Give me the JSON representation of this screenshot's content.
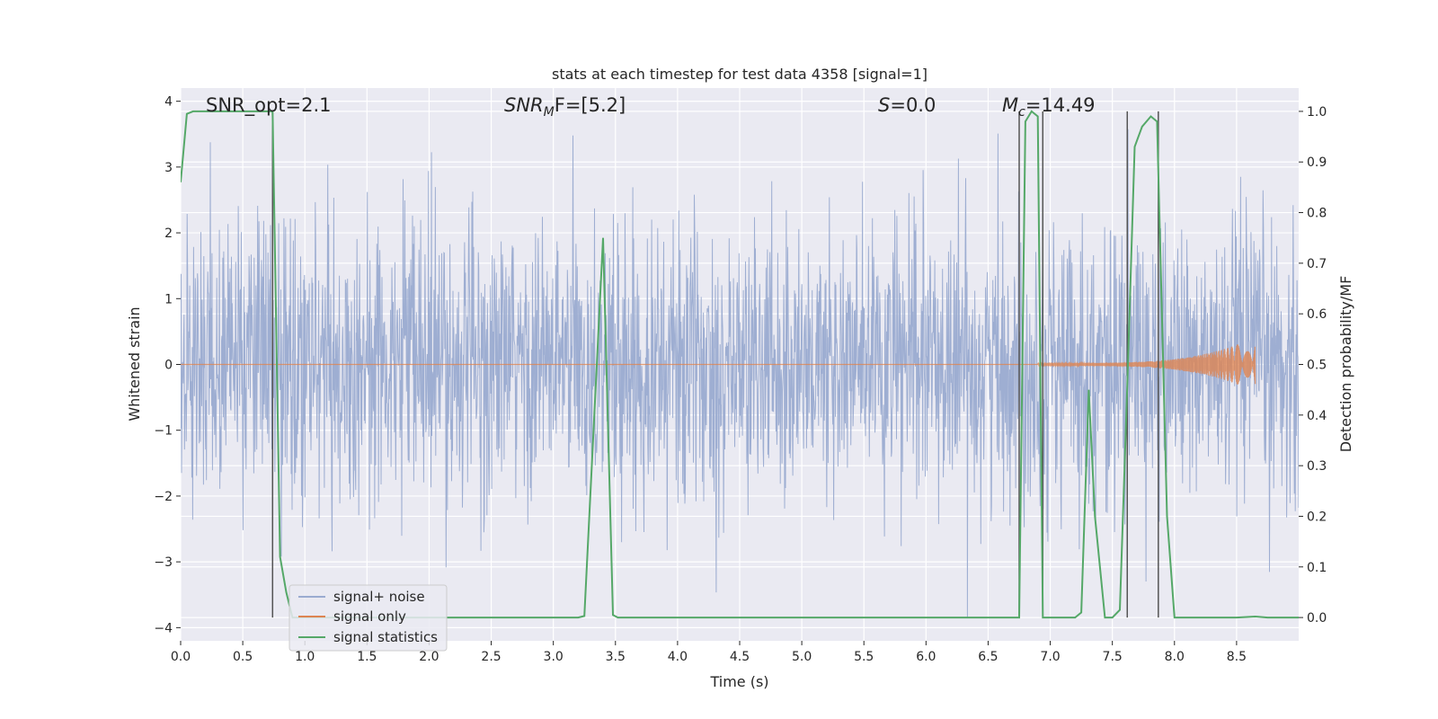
{
  "chart_data": {
    "type": "line",
    "title": "stats at each timestep for test data 4358 [signal=1]",
    "xlabel": "Time (s)",
    "ylabel": "Whitened strain",
    "y2label": "Detection probability/MF",
    "xlim": [
      0,
      9
    ],
    "ylim": [
      -4.2,
      4.2
    ],
    "y2lim": [
      -0.046,
      1.046
    ],
    "x_ticks": [
      "0.0",
      "0.5",
      "1.0",
      "1.5",
      "2.0",
      "2.5",
      "3.0",
      "3.5",
      "4.0",
      "4.5",
      "5.0",
      "5.5",
      "6.0",
      "6.5",
      "7.0",
      "7.5",
      "8.0",
      "8.5"
    ],
    "y_ticks": [
      "4",
      "3",
      "2",
      "1",
      "0",
      "−1",
      "−2",
      "−3",
      "−4"
    ],
    "y2_ticks": [
      "1.0",
      "0.9",
      "0.8",
      "0.7",
      "0.6",
      "0.5",
      "0.4",
      "0.3",
      "0.2",
      "0.1",
      "0.0"
    ],
    "grid": true,
    "legend_position": "lower-left",
    "annotations": {
      "snr_opt": "SNR_opt=2.1",
      "snr_mf_label": "SNR",
      "snr_mf_sub": "M",
      "snr_mf_rest": "F=[5.2]",
      "s_label": "S",
      "s_rest": "=0.0",
      "mc_label": "M",
      "mc_sub": "c",
      "mc_rest": "=14.49"
    },
    "series": [
      {
        "name": "signal+ noise",
        "color": "#9aabd0",
        "description_values": "whitened noise, std ≈ 1, range [-4, 4]"
      },
      {
        "name": "signal only",
        "color": "#dd8452",
        "chirp_start": 6.9,
        "chirp_end": 8.65,
        "max_amplitude": 0.4
      },
      {
        "name": "signal statistics",
        "color": "#55a868",
        "x": [
          0.0,
          0.05,
          0.1,
          0.2,
          0.4,
          0.6,
          0.7,
          0.74,
          0.8,
          0.85,
          0.9,
          1.0,
          2.0,
          3.0,
          3.2,
          3.25,
          3.4,
          3.48,
          3.52,
          4.0,
          5.0,
          6.0,
          6.7,
          6.75,
          6.8,
          6.85,
          6.9,
          6.94,
          7.0,
          7.05,
          7.1,
          7.2,
          7.25,
          7.31,
          7.36,
          7.44,
          7.5,
          7.56,
          7.62,
          7.68,
          7.74,
          7.81,
          7.86,
          7.94,
          8.0,
          8.1,
          8.5,
          8.65,
          8.75,
          9.0
        ],
        "y": [
          0.86,
          0.995,
          1.0,
          1.0,
          1.0,
          1.0,
          1.0,
          1.0,
          0.12,
          0.05,
          0.0,
          0.0,
          0.0,
          0.0,
          0.0,
          0.003,
          0.75,
          0.005,
          0.0,
          0.0,
          0.0,
          0.0,
          0.0,
          0.0,
          0.98,
          1.0,
          0.99,
          0.0,
          0.0,
          0.0,
          0.0,
          0.0,
          0.01,
          0.45,
          0.2,
          0.0,
          0.0,
          0.015,
          0.46,
          0.93,
          0.97,
          0.99,
          0.98,
          0.2,
          0.0,
          0.0,
          0.0,
          0.002,
          0.0,
          0.0
        ]
      }
    ],
    "vertical_markers": [
      0.74,
      6.75,
      6.94,
      7.62,
      7.87
    ],
    "legend": [
      "signal+ noise",
      "signal only",
      "signal statistics"
    ]
  }
}
